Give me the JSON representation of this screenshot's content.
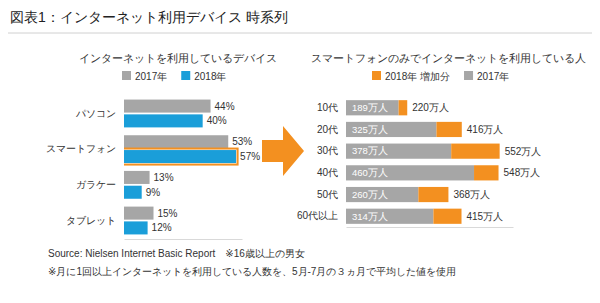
{
  "figure": {
    "title": "図表1：インターネット利用デバイス 時系列",
    "source": "Source: Nielsen Internet Basic Report　※16歳以上の男女",
    "note": "※月に1回以上インターネットを利用している人数を、5月-7月の３ヵ月で平均した値を使用"
  },
  "chart_data": [
    {
      "type": "bar",
      "title": "インターネットを利用しているデバイス",
      "orientation": "horizontal",
      "data_labels": true,
      "tick_labels": "y",
      "categories": [
        "パソコン",
        "スマートフォン",
        "ガラケー",
        "タブレット"
      ],
      "series": [
        {
          "name": "2017年",
          "color": "#a6a6a6",
          "values": [
            44,
            53,
            13,
            15
          ],
          "value_labels": [
            "44%",
            "53%",
            "13%",
            "15%"
          ]
        },
        {
          "name": "2018年",
          "color": "#1a9ed9",
          "values": [
            40,
            57,
            9,
            12
          ],
          "value_labels": [
            "40%",
            "57%",
            "9%",
            "12%"
          ]
        }
      ],
      "xlim": [
        0,
        60
      ]
    },
    {
      "type": "bar",
      "title": "スマートフォンのみでインターネットを利用している人",
      "orientation": "horizontal",
      "stacked": true,
      "data_labels": true,
      "tick_labels": "y",
      "categories": [
        "10代",
        "20代",
        "30代",
        "40代",
        "50代",
        "60代以上"
      ],
      "series": [
        {
          "name": "2017年",
          "color": "#a6a6a6",
          "values": [
            189,
            325,
            378,
            460,
            260,
            314
          ],
          "value_labels": [
            "189万人",
            "325万人",
            "378万人",
            "460万人",
            "260万人",
            "314万人"
          ]
        },
        {
          "name": "2018年 増加分",
          "color": "#f39020",
          "values": [
            31,
            91,
            174,
            88,
            108,
            101
          ]
        }
      ],
      "annotations": [
        "220万人",
        "416万人",
        "552万人",
        "548万人",
        "368万人",
        "415万人"
      ],
      "xlim": [
        0,
        600
      ]
    }
  ]
}
